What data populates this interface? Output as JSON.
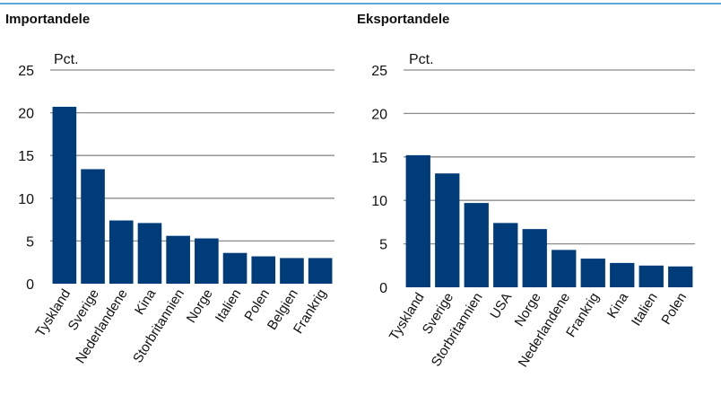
{
  "chart_data": [
    {
      "type": "bar",
      "title": "Importandele",
      "ylabel": "Pct.",
      "ylim": [
        0,
        25
      ],
      "yticks": [
        0,
        5,
        10,
        15,
        20,
        25
      ],
      "grid": true,
      "categories": [
        "Tyskland",
        "Sverige",
        "Nederlandene",
        "Kina",
        "Storbritannien",
        "Norge",
        "Italien",
        "Polen",
        "Belgien",
        "Frankrig"
      ],
      "values": [
        20.7,
        13.4,
        7.4,
        7.1,
        5.6,
        5.3,
        3.6,
        3.2,
        3.0,
        3.0
      ],
      "color": "#003b7a"
    },
    {
      "type": "bar",
      "title": "Eksportandele",
      "ylabel": "Pct.",
      "ylim": [
        0,
        25
      ],
      "yticks": [
        0,
        5,
        10,
        15,
        20,
        25
      ],
      "grid": true,
      "categories": [
        "Tyskland",
        "Sverige",
        "Storbritannien",
        "USA",
        "Norge",
        "Nederlandene",
        "Frankrig",
        "Kina",
        "Italien",
        "Polen"
      ],
      "values": [
        15.2,
        13.1,
        9.7,
        7.4,
        6.7,
        4.3,
        3.3,
        2.8,
        2.5,
        2.4
      ],
      "color": "#003b7a"
    }
  ]
}
